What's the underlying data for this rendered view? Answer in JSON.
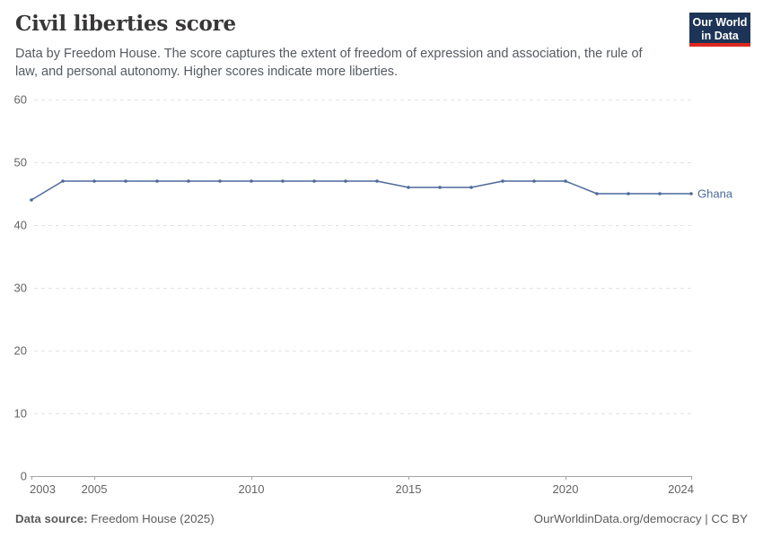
{
  "header": {
    "title": "Civil liberties score",
    "subtitle": "Data by Freedom House. The score captures the extent of freedom of expression and association, the rule of law, and personal autonomy. Higher scores indicate more liberties.",
    "logo": {
      "line1": "Our World",
      "line2": "in Data",
      "bg_color": "#1d3456",
      "accent_color": "#dc2a1f"
    }
  },
  "chart_data": {
    "type": "line",
    "title": "Civil liberties score",
    "xlabel": "",
    "ylabel": "",
    "xlim": [
      2003,
      2024
    ],
    "ylim": [
      0,
      60
    ],
    "x_ticks": [
      2003,
      2005,
      2010,
      2015,
      2020,
      2024
    ],
    "y_ticks": [
      0,
      10,
      20,
      30,
      40,
      50,
      60
    ],
    "grid": "horizontal-dashed",
    "legend_position": "end-of-line",
    "series": [
      {
        "name": "Ghana",
        "color": "#4c6a9c",
        "x": [
          2003,
          2004,
          2005,
          2006,
          2007,
          2008,
          2009,
          2010,
          2011,
          2012,
          2013,
          2014,
          2015,
          2016,
          2017,
          2018,
          2019,
          2020,
          2021,
          2022,
          2023,
          2024
        ],
        "values": [
          44,
          47,
          47,
          47,
          47,
          47,
          47,
          47,
          47,
          47,
          47,
          47,
          46,
          46,
          46,
          47,
          47,
          47,
          45,
          45,
          45,
          45
        ]
      }
    ],
    "colors": {
      "gridline": "#e2e2e2",
      "axis": "#a3a3a3",
      "tick_text": "#636363"
    }
  },
  "footer": {
    "source_label": "Data source:",
    "source_value": " Freedom House (2025)",
    "license": "OurWorldinData.org/democracy | CC BY"
  }
}
